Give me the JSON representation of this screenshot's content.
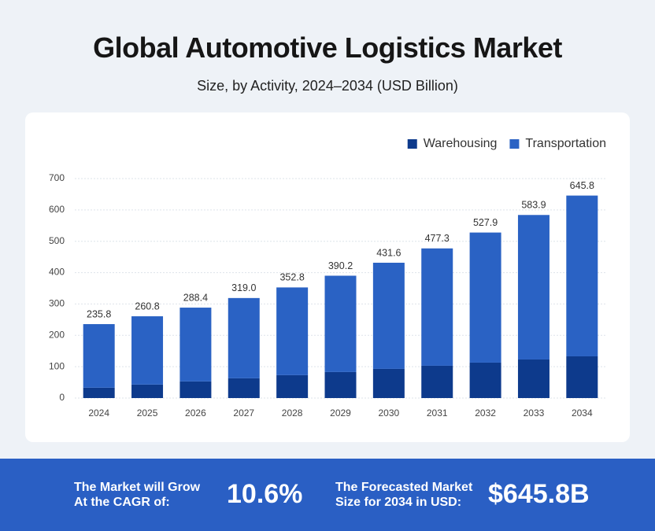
{
  "header": {
    "title": "Global Automotive Logistics Market",
    "subtitle": "Size, by Activity, 2024–2034 (USD Billion)"
  },
  "chart_data": {
    "type": "stacked_bar",
    "categories": [
      "2024",
      "2025",
      "2026",
      "2027",
      "2028",
      "2029",
      "2030",
      "2031",
      "2032",
      "2033",
      "2034"
    ],
    "series": [
      {
        "name": "Warehousing",
        "color": "#0d3a8c",
        "values": [
          33,
          43,
          53,
          63,
          73,
          83,
          93,
          103,
          113,
          123,
          133
        ]
      },
      {
        "name": "Transportation",
        "color": "#2a62c4",
        "values": [
          202.8,
          217.8,
          235.4,
          256.0,
          279.8,
          307.2,
          338.6,
          374.3,
          414.9,
          460.9,
          512.8
        ]
      }
    ],
    "totals": [
      235.8,
      260.8,
      288.4,
      319.0,
      352.8,
      390.2,
      431.6,
      477.3,
      527.9,
      583.9,
      645.8
    ],
    "total_labels": [
      "235.8",
      "260.8",
      "288.4",
      "319.0",
      "352.8",
      "390.2",
      "431.6",
      "477.3",
      "527.9",
      "583.9",
      "645.8"
    ],
    "ylim": [
      0,
      700
    ],
    "yticks": [
      0,
      100,
      200,
      300,
      400,
      500,
      600,
      700
    ],
    "grid": true,
    "legend": "top-right"
  },
  "footer": {
    "items": [
      {
        "label": "The Market will Grow At the CAGR of:",
        "value": "10.6%"
      },
      {
        "label": "The Forecasted Market Size for 2034 in USD:",
        "value": "$645.8B"
      }
    ]
  }
}
